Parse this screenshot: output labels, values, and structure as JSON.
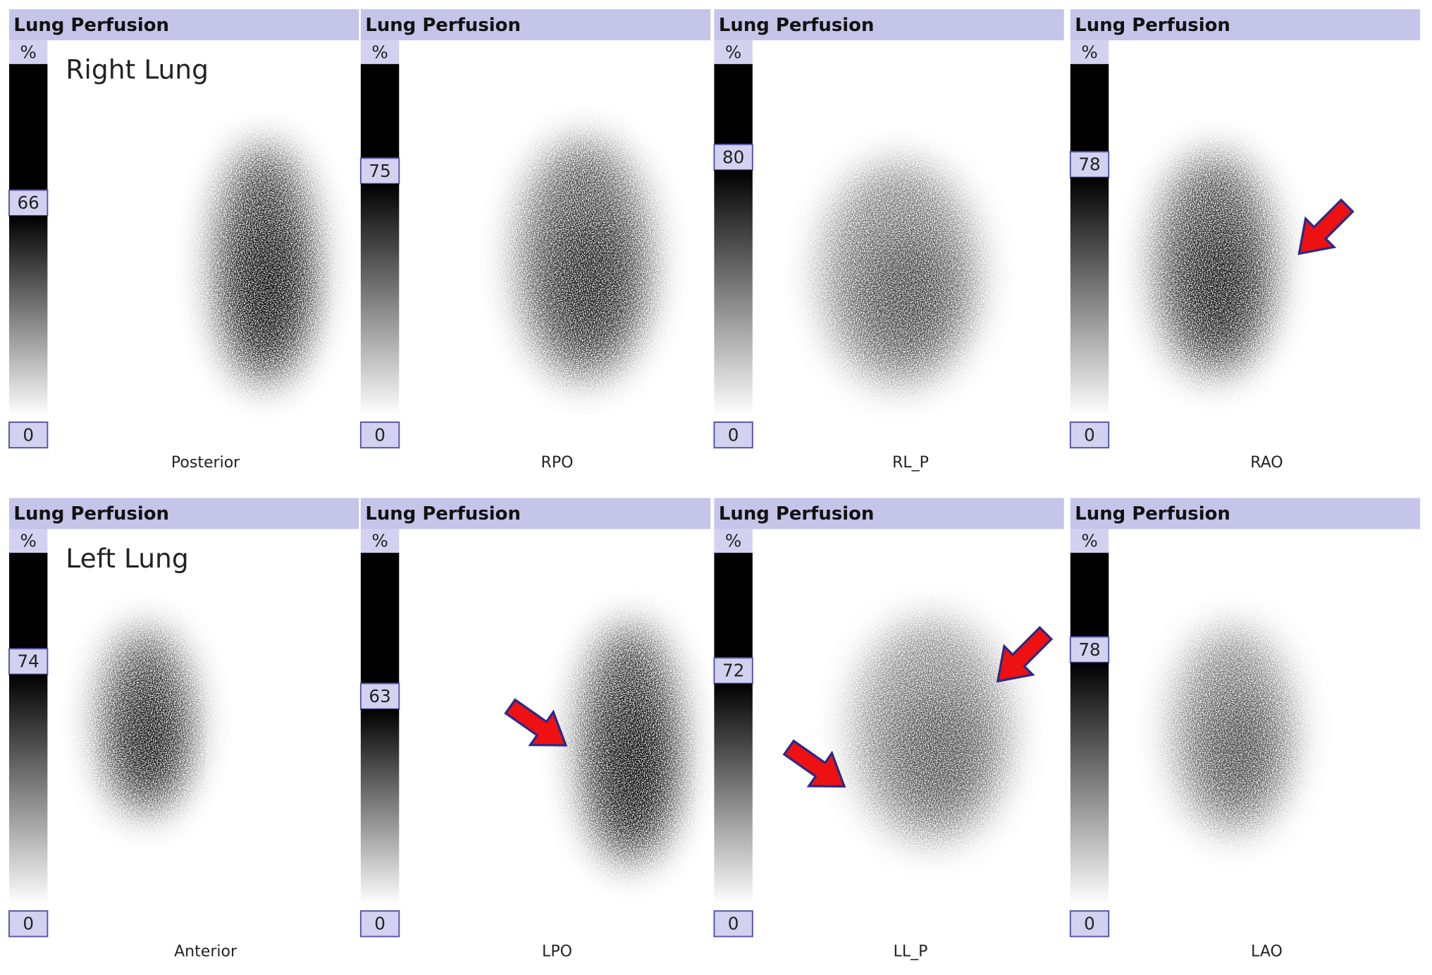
{
  "panels": [
    {
      "header": "Lung Perfusion",
      "unit": "%",
      "max_label": "66",
      "min_label": "0",
      "view": "Posterior",
      "annotation": "Right Lung"
    },
    {
      "header": "Lung Perfusion",
      "unit": "%",
      "max_label": "75",
      "min_label": "0",
      "view": "RPO"
    },
    {
      "header": "Lung Perfusion",
      "unit": "%",
      "max_label": "80",
      "min_label": "0",
      "view": "RL_P"
    },
    {
      "header": "Lung Perfusion",
      "unit": "%",
      "max_label": "78",
      "min_label": "0",
      "view": "RAO"
    },
    {
      "header": "Lung Perfusion",
      "unit": "%",
      "max_label": "74",
      "min_label": "0",
      "view": "Anterior",
      "annotation": "Left Lung"
    },
    {
      "header": "Lung Perfusion",
      "unit": "%",
      "max_label": "63",
      "min_label": "0",
      "view": "LPO"
    },
    {
      "header": "Lung Perfusion",
      "unit": "%",
      "max_label": "72",
      "min_label": "0",
      "view": "LL_P"
    },
    {
      "header": "Lung Perfusion",
      "unit": "%",
      "max_label": "78",
      "min_label": "0",
      "view": "LAO"
    }
  ]
}
